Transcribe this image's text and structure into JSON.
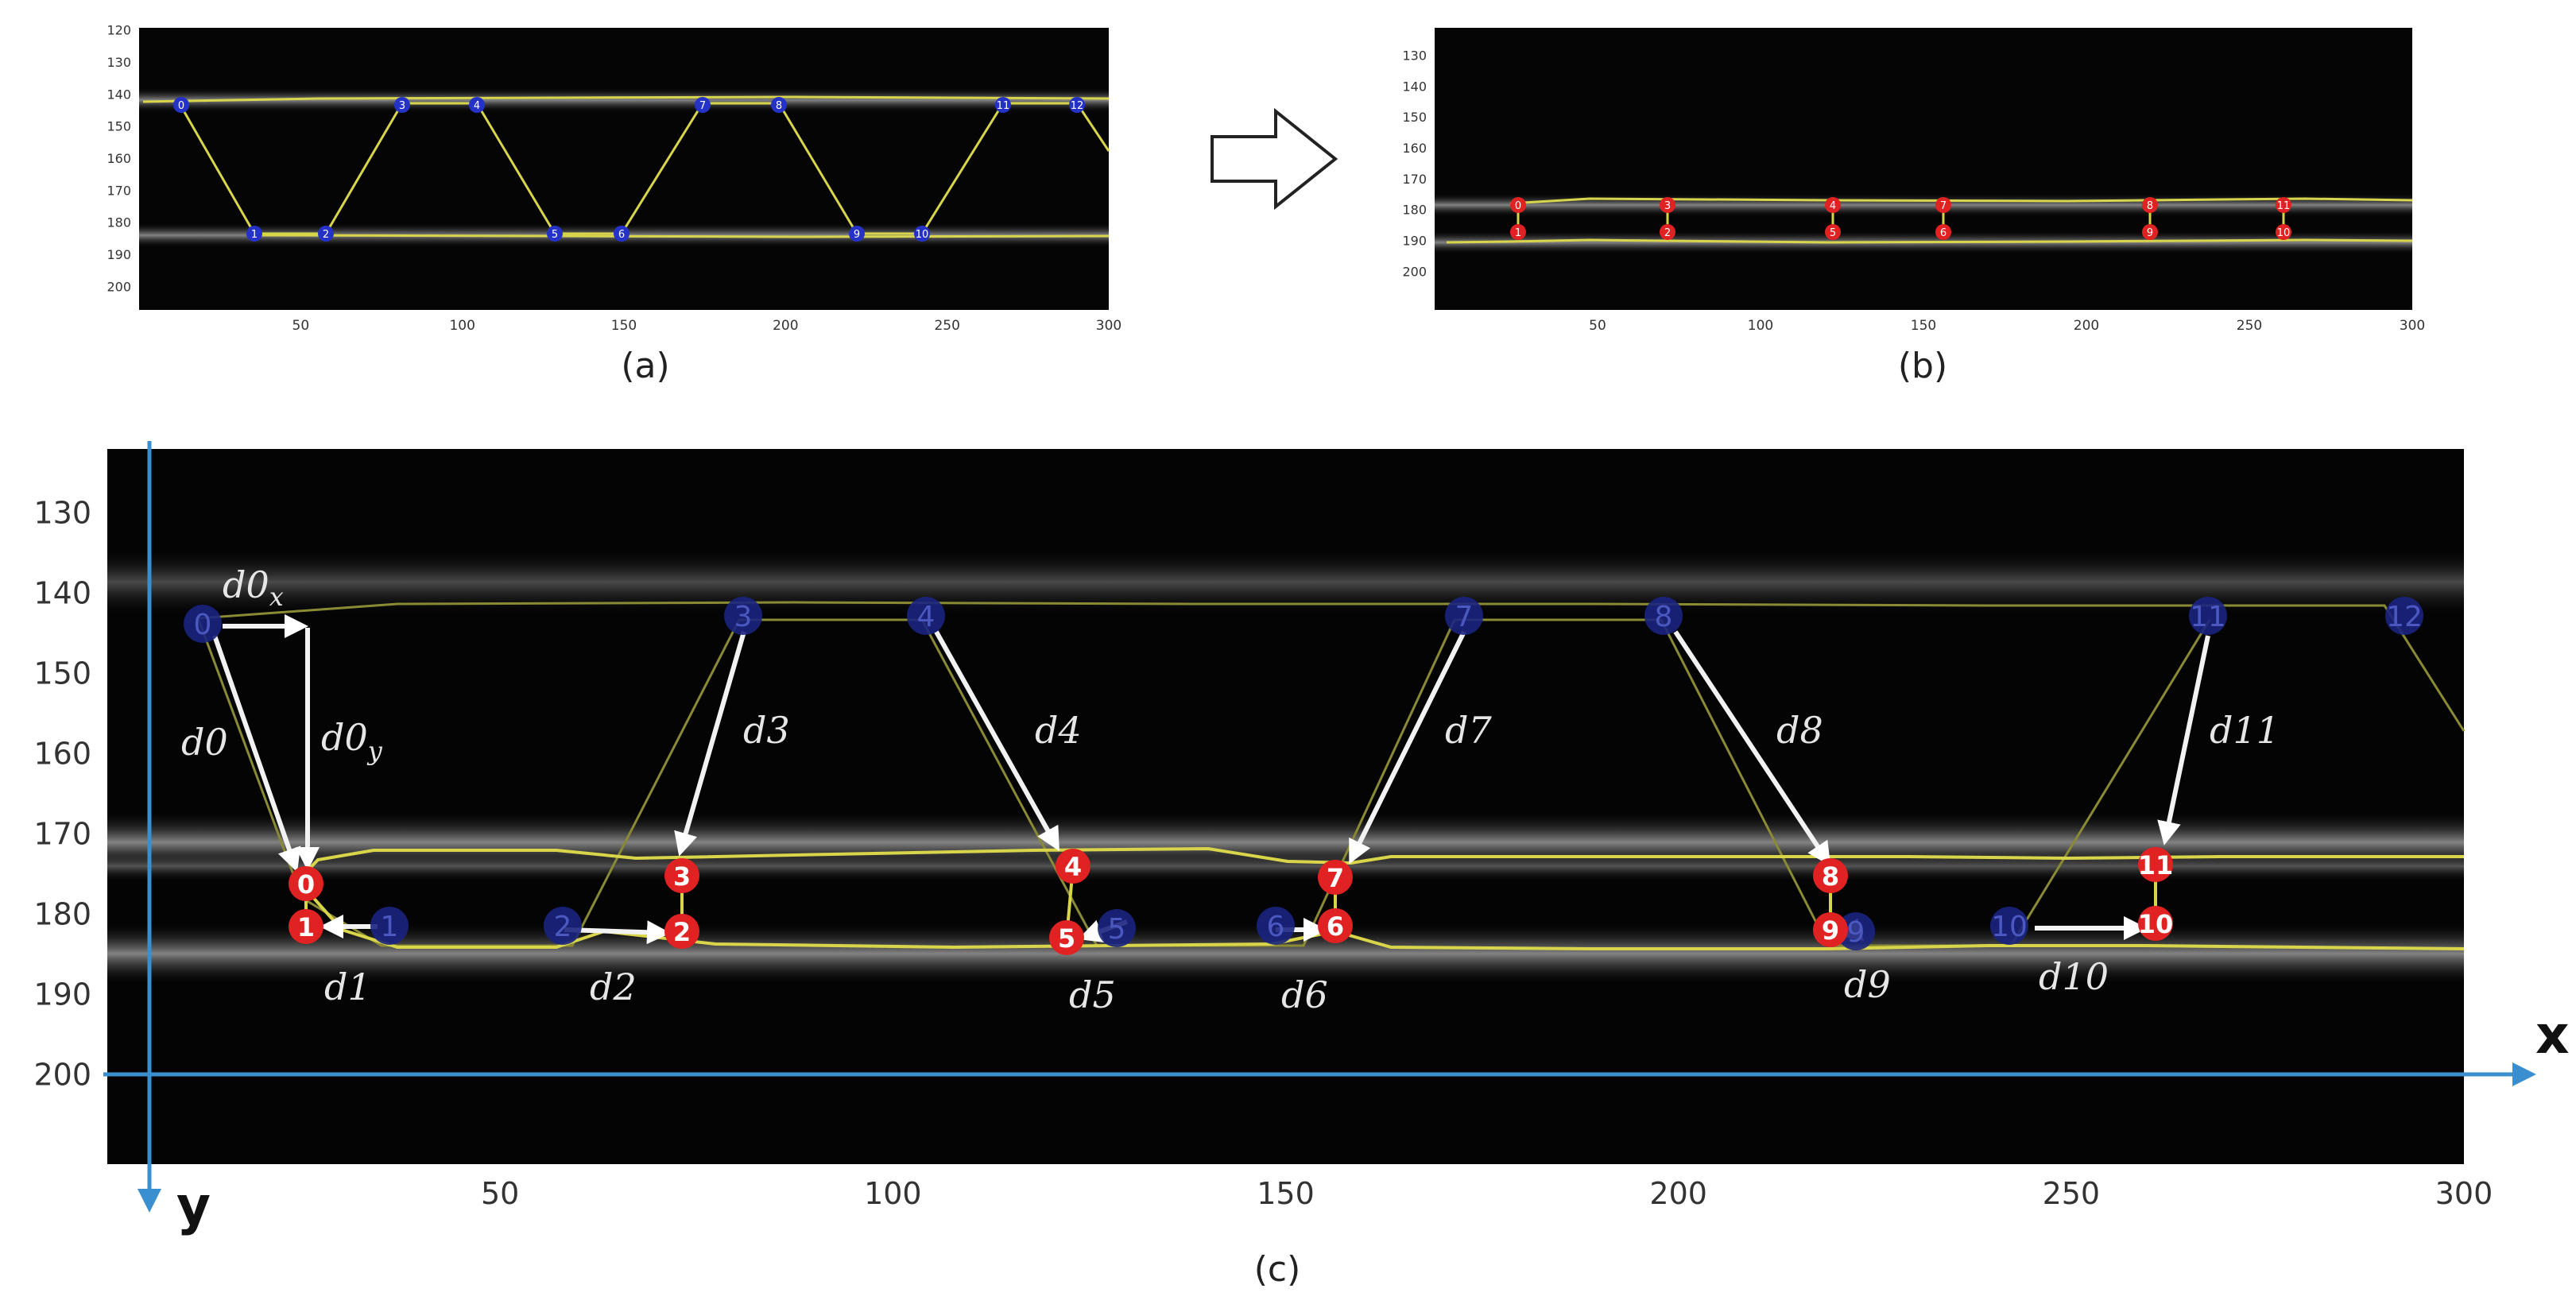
{
  "panel_a": {
    "caption": "(a)",
    "x_ticks": [
      "50",
      "100",
      "150",
      "200",
      "250",
      "300"
    ],
    "y_ticks": [
      "120",
      "130",
      "140",
      "150",
      "160",
      "170",
      "180",
      "190",
      "200"
    ],
    "top_labels": [
      "0",
      "3",
      "4",
      "7",
      "8",
      "11",
      "12"
    ],
    "bottom_labels": [
      "1",
      "2",
      "5",
      "6",
      "9",
      "10"
    ]
  },
  "panel_b": {
    "caption": "(b)",
    "x_ticks": [
      "50",
      "100",
      "150",
      "200",
      "250",
      "300"
    ],
    "y_ticks": [
      "130",
      "140",
      "150",
      "160",
      "170",
      "180",
      "190",
      "200"
    ],
    "pairs": [
      [
        "0",
        "1"
      ],
      [
        "3",
        "2"
      ],
      [
        "4",
        "5"
      ],
      [
        "7",
        "6"
      ],
      [
        "8",
        "9"
      ],
      [
        "11",
        "10"
      ]
    ]
  },
  "panel_c": {
    "caption": "(c)",
    "x_ticks": [
      "50",
      "100",
      "150",
      "200",
      "250",
      "300"
    ],
    "y_ticks": [
      "130",
      "140",
      "150",
      "160",
      "170",
      "180",
      "190",
      "200"
    ],
    "axis_x_label": "x",
    "axis_y_label": "y",
    "blue_points": [
      "0",
      "3",
      "4",
      "7",
      "8",
      "11",
      "12",
      "1",
      "2",
      "5",
      "6",
      "9",
      "10"
    ],
    "red_points": [
      "0",
      "1",
      "3",
      "2",
      "4",
      "5",
      "7",
      "6",
      "8",
      "9",
      "11",
      "10"
    ],
    "distance_labels": {
      "d0x": "d0",
      "d0x_sub": "x",
      "d0y": "d0",
      "d0y_sub": "y",
      "d0": "d0",
      "d3": "d3",
      "d4": "d4",
      "d7": "d7",
      "d8": "d8",
      "d11": "d11",
      "d1": "d1",
      "d2": "d2",
      "d5": "d5",
      "d6": "d6",
      "d9": "d9",
      "d10": "d10"
    }
  },
  "colors": {
    "trace": "#d8d54a",
    "blue_point": "#1a2380",
    "red_point": "#e02222",
    "axis_arrow": "#3a8fd0"
  }
}
